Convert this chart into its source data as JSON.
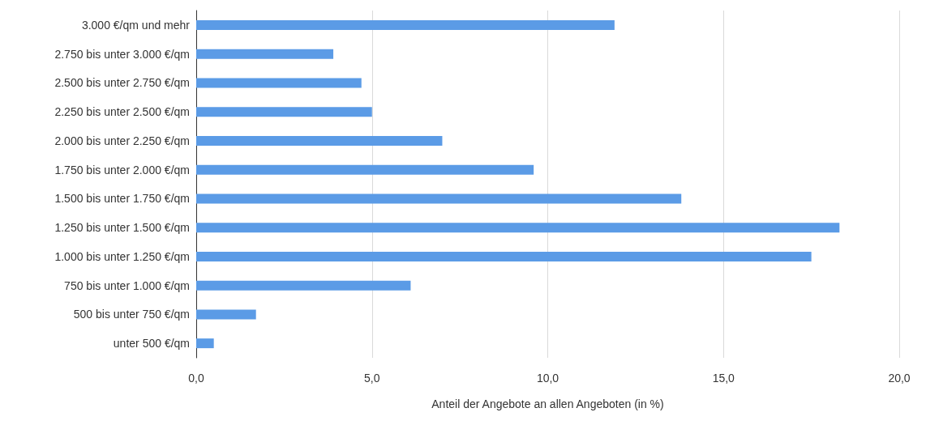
{
  "chart_data": {
    "type": "bar",
    "orientation": "horizontal",
    "xlabel": "Anteil der Angebote an allen Angeboten (in %)",
    "categories": [
      "3.000 €/qm und mehr",
      "2.750 bis unter 3.000 €/qm",
      "2.500 bis unter 2.750 €/qm",
      "2.250 bis unter 2.500 €/qm",
      "2.000 bis unter 2.250 €/qm",
      "1.750 bis unter 2.000 €/qm",
      "1.500 bis unter 1.750 €/qm",
      "1.250 bis unter 1.500 €/qm",
      "1.000 bis unter 1.250 €/qm",
      "750 bis unter 1.000 €/qm",
      "500 bis unter 750 €/qm",
      "unter 500 €/qm"
    ],
    "values": [
      11.9,
      3.9,
      4.7,
      5.0,
      7.0,
      9.6,
      13.8,
      18.3,
      17.5,
      6.1,
      1.7,
      0.5
    ],
    "color": "#5b9be6",
    "xlim": [
      0,
      20
    ],
    "xticks": [
      {
        "value": 0,
        "label": "0,0"
      },
      {
        "value": 5,
        "label": "5,0"
      },
      {
        "value": 10,
        "label": "10,0"
      },
      {
        "value": 15,
        "label": "15,0"
      },
      {
        "value": 20,
        "label": "20,0"
      }
    ],
    "grid": "x"
  }
}
